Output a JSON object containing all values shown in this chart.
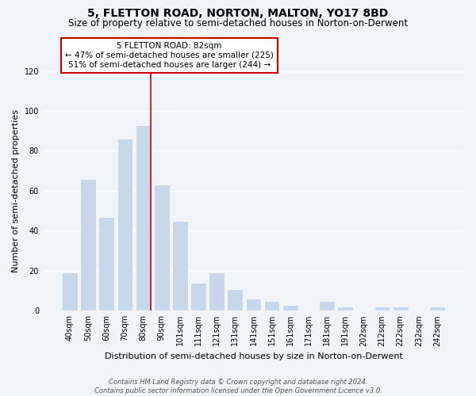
{
  "title": "5, FLETTON ROAD, NORTON, MALTON, YO17 8BD",
  "subtitle": "Size of property relative to semi-detached houses in Norton-on-Derwent",
  "xlabel": "Distribution of semi-detached houses by size in Norton-on-Derwent",
  "ylabel": "Number of semi-detached properties",
  "bar_labels": [
    "40sqm",
    "50sqm",
    "60sqm",
    "70sqm",
    "80sqm",
    "90sqm",
    "101sqm",
    "111sqm",
    "121sqm",
    "131sqm",
    "141sqm",
    "151sqm",
    "161sqm",
    "171sqm",
    "181sqm",
    "191sqm",
    "202sqm",
    "212sqm",
    "222sqm",
    "232sqm",
    "242sqm"
  ],
  "bar_values": [
    19,
    66,
    47,
    86,
    93,
    63,
    45,
    14,
    19,
    11,
    6,
    5,
    3,
    0,
    5,
    2,
    0,
    2,
    2,
    0,
    2
  ],
  "bar_color": "#c8d8ea",
  "highlight_bar_index": 4,
  "highlight_line_color": "#cc0000",
  "ylim": [
    0,
    120
  ],
  "yticks": [
    0,
    20,
    40,
    60,
    80,
    100,
    120
  ],
  "annotation_title": "5 FLETTON ROAD: 82sqm",
  "annotation_line1": "← 47% of semi-detached houses are smaller (225)",
  "annotation_line2": "51% of semi-detached houses are larger (244) →",
  "footer_line1": "Contains HM Land Registry data © Crown copyright and database right 2024.",
  "footer_line2": "Contains public sector information licensed under the Open Government Licence v3.0.",
  "background_color": "#f0f4f8",
  "grid_color": "#ffffff",
  "title_fontsize": 10,
  "subtitle_fontsize": 8.5,
  "axis_label_fontsize": 8,
  "tick_fontsize": 7,
  "annotation_fontsize": 7.5,
  "footer_fontsize": 6
}
